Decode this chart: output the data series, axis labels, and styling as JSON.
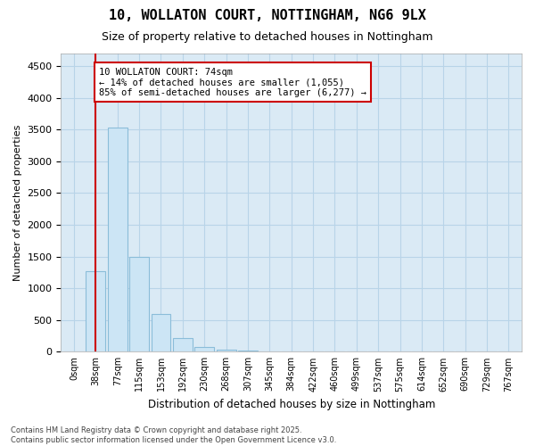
{
  "title_line1": "10, WOLLATON COURT, NOTTINGHAM, NG6 9LX",
  "title_line2": "Size of property relative to detached houses in Nottingham",
  "xlabel": "Distribution of detached houses by size in Nottingham",
  "ylabel": "Number of detached properties",
  "bar_values": [
    0,
    1270,
    3540,
    1490,
    600,
    210,
    80,
    30,
    15,
    8,
    5,
    3,
    2,
    1,
    1,
    1,
    0,
    0,
    0,
    0,
    0
  ],
  "bar_labels": [
    "0sqm",
    "38sqm",
    "77sqm",
    "115sqm",
    "153sqm",
    "192sqm",
    "230sqm",
    "268sqm",
    "307sqm",
    "345sqm",
    "384sqm",
    "422sqm",
    "460sqm",
    "499sqm",
    "537sqm",
    "575sqm",
    "614sqm",
    "652sqm",
    "690sqm",
    "729sqm",
    "767sqm"
  ],
  "bar_color": "#cce5f5",
  "bar_edge_color": "#8bbdd9",
  "highlight_color": "#cc0000",
  "annotation_text": "10 WOLLATON COURT: 74sqm\n← 14% of detached houses are smaller (1,055)\n85% of semi-detached houses are larger (6,277) →",
  "annotation_box_facecolor": "#ffffff",
  "annotation_border_color": "#cc0000",
  "ylim": [
    0,
    4700
  ],
  "yticks": [
    0,
    500,
    1000,
    1500,
    2000,
    2500,
    3000,
    3500,
    4000,
    4500
  ],
  "grid_color": "#b8d4e8",
  "plot_bg_color": "#daeaf5",
  "footer_line1": "Contains HM Land Registry data © Crown copyright and database right 2025.",
  "footer_line2": "Contains public sector information licensed under the Open Government Licence v3.0.",
  "highlight_bin_index": 1
}
